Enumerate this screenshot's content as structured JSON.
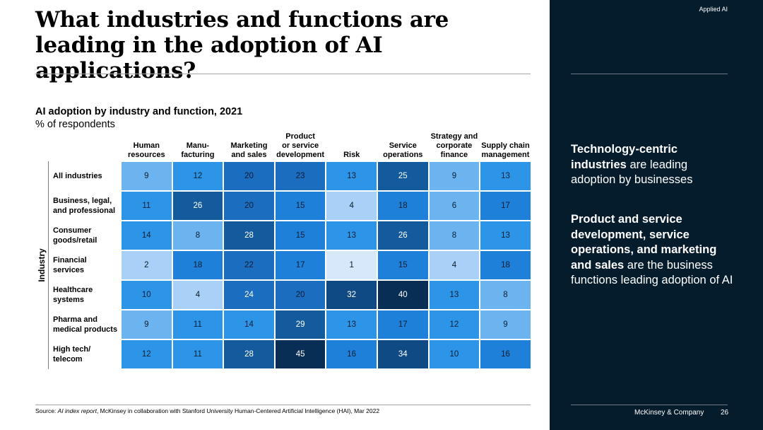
{
  "header": {
    "title": "What industries and functions are leading in the adoption of AI applications?",
    "tag": "Applied AI"
  },
  "chart_data": {
    "type": "heatmap",
    "title": "AI adoption by industry and function, 2021",
    "subtitle": "% of respondents",
    "ylabel": "Industry",
    "columns": [
      "Human\nresources",
      "Manu-\nfacturing",
      "Marketing\nand sales",
      "Product\nor service\ndevelopment",
      "Risk",
      "Service\noperations",
      "Strategy and\ncorporate\nfinance",
      "Supply chain\nmanagement"
    ],
    "rows": [
      "All industries",
      "Business, legal,\nand professional",
      "Consumer\ngoods/retail",
      "Financial\nservices",
      "Healthcare\nsystems",
      "Pharma and\nmedical products",
      "High tech/\ntelecom"
    ],
    "values": [
      [
        9,
        12,
        20,
        23,
        13,
        25,
        9,
        13
      ],
      [
        11,
        26,
        20,
        15,
        4,
        18,
        6,
        17
      ],
      [
        14,
        8,
        28,
        15,
        13,
        26,
        8,
        13
      ],
      [
        2,
        18,
        22,
        17,
        1,
        15,
        4,
        18
      ],
      [
        10,
        4,
        24,
        20,
        32,
        40,
        13,
        8
      ],
      [
        9,
        11,
        14,
        29,
        13,
        17,
        12,
        9
      ],
      [
        12,
        11,
        28,
        45,
        16,
        34,
        10,
        16
      ]
    ],
    "legend": "none",
    "grid": false
  },
  "source": {
    "prefix": "Source: ",
    "report": "AI index report",
    "rest": ", McKinsey in collaboration with Stanford University Human-Centered Artificial Intelligence (HAI), Mar 2022"
  },
  "sidebar": {
    "point1": {
      "bold": "Technology-centric industries",
      "rest": " are leading adoption by businesses"
    },
    "point2": {
      "bold": "Product and service development, service operations, and marketing and sales",
      "rest": " are the business functions leading adoption of AI"
    },
    "footer": "McKinsey & Company",
    "page_number": "26"
  }
}
